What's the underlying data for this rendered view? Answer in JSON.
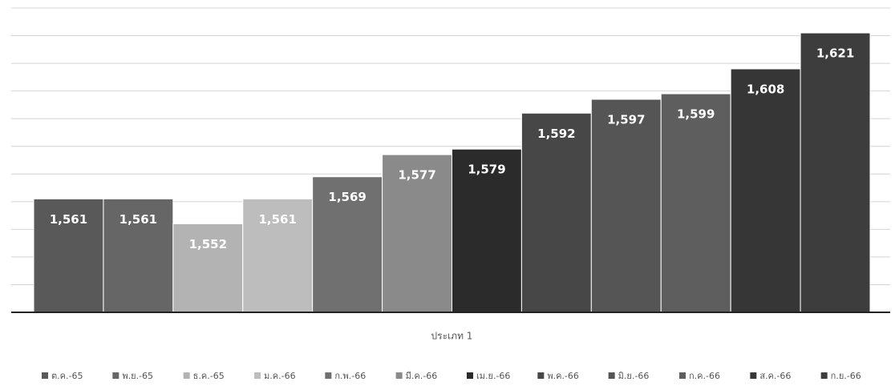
{
  "chart_data": {
    "type": "bar",
    "categories": [
      "ประเภท 1"
    ],
    "series": [
      {
        "name": "ต.ค.-65",
        "color": "#595959",
        "values": [
          1561
        ],
        "value_labels": [
          "1,561"
        ]
      },
      {
        "name": "พ.ย.-65",
        "color": "#666666",
        "values": [
          1561
        ],
        "value_labels": [
          "1,561"
        ]
      },
      {
        "name": "ธ.ค.-65",
        "color": "#b3b3b3",
        "values": [
          1552
        ],
        "value_labels": [
          "1,552"
        ]
      },
      {
        "name": "ม.ค.-66",
        "color": "#bdbdbd",
        "values": [
          1561
        ],
        "value_labels": [
          "1,561"
        ]
      },
      {
        "name": "ก.พ.-66",
        "color": "#707070",
        "values": [
          1569
        ],
        "value_labels": [
          "1,569"
        ]
      },
      {
        "name": "มี.ค.-66",
        "color": "#8a8a8a",
        "values": [
          1577
        ],
        "value_labels": [
          "1,577"
        ]
      },
      {
        "name": "เม.ย.-66",
        "color": "#2b2b2b",
        "values": [
          1579
        ],
        "value_labels": [
          "1,579"
        ]
      },
      {
        "name": "พ.ค.-66",
        "color": "#474747",
        "values": [
          1592
        ],
        "value_labels": [
          "1,592"
        ]
      },
      {
        "name": "มิ.ย.-66",
        "color": "#555555",
        "values": [
          1597
        ],
        "value_labels": [
          "1,597"
        ]
      },
      {
        "name": "ก.ค.-66",
        "color": "#5e5e5e",
        "values": [
          1599
        ],
        "value_labels": [
          "1,599"
        ]
      },
      {
        "name": "ส.ค.-66",
        "color": "#363636",
        "values": [
          1608
        ],
        "value_labels": [
          "1,608"
        ]
      },
      {
        "name": "ก.ย.-66",
        "color": "#3d3d3d",
        "values": [
          1621
        ],
        "value_labels": [
          "1,621"
        ]
      }
    ],
    "ylim": [
      1520,
      1630
    ],
    "yticks": [
      1520,
      1530,
      1540,
      1550,
      1560,
      1570,
      1580,
      1590,
      1600,
      1610,
      1620,
      1630
    ],
    "grid": true
  }
}
